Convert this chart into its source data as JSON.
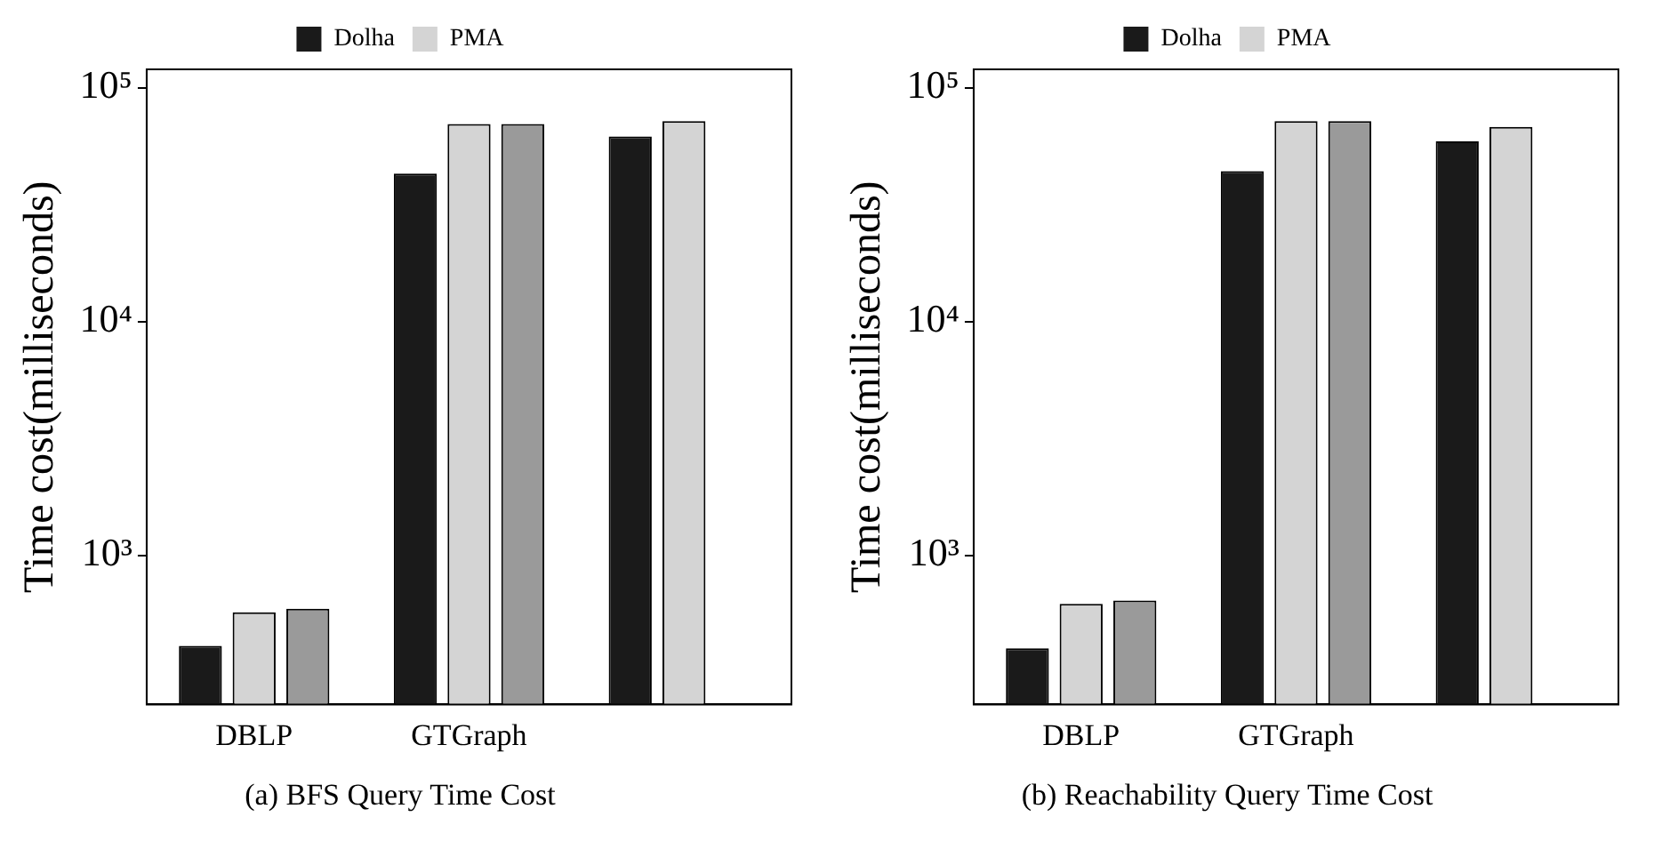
{
  "chart_data": [
    {
      "type": "bar",
      "title": "(a) BFS Query Time Cost",
      "ylabel": "Time cost(milliseconds)",
      "categories": [
        "DBLP",
        "GTGraph",
        null
      ],
      "series": [
        {
          "name": "Dolha",
          "color": "#1a1a1a",
          "values": [
            410,
            43000,
            62000
          ]
        },
        {
          "name": "PMA",
          "color": "#d4d4d4",
          "values": [
            570,
            70000,
            72000
          ]
        },
        {
          "color": "#9a9a9a",
          "values": [
            590,
            70000,
            null
          ]
        }
      ],
      "log": "y",
      "ylim": [
        230,
        120000
      ],
      "yticks": [
        {
          "value": 1000,
          "label": "10³"
        },
        {
          "value": 10000,
          "label": "10⁴"
        },
        {
          "value": 100000,
          "label": "10⁵"
        }
      ],
      "grid": false,
      "legend": "top"
    },
    {
      "type": "bar",
      "title": "(b) Reachability Query Time Cost",
      "ylabel": "Time cost(milliseconds)",
      "categories": [
        "DBLP",
        "GTGraph",
        null
      ],
      "series": [
        {
          "name": "Dolha",
          "color": "#1a1a1a",
          "values": [
            400,
            44000,
            59000
          ]
        },
        {
          "name": "PMA",
          "color": "#d4d4d4",
          "values": [
            620,
            72000,
            68000
          ]
        },
        {
          "color": "#9a9a9a",
          "values": [
            640,
            72000,
            null
          ]
        }
      ],
      "log": "y",
      "ylim": [
        230,
        120000
      ],
      "yticks": [
        {
          "value": 1000,
          "label": "10³"
        },
        {
          "value": 10000,
          "label": "10⁴"
        },
        {
          "value": 100000,
          "label": "10⁵"
        }
      ],
      "grid": false,
      "legend": "top"
    }
  ]
}
